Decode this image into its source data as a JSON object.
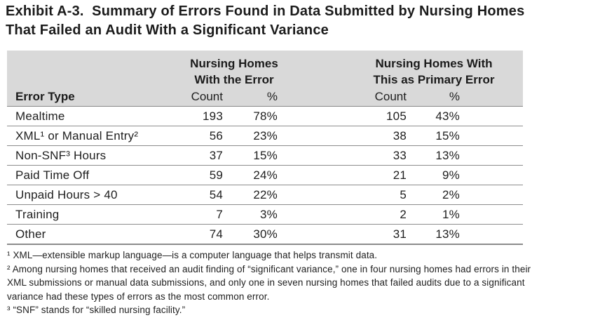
{
  "title": {
    "line1": "Exhibit A-3.  Summary of Errors Found in Data Submitted by Nursing Homes",
    "line2": "That Failed an Audit With a Significant Variance"
  },
  "table": {
    "group_headers": {
      "with_error": "Nursing Homes\nWith the Error",
      "primary_error": "Nursing Homes With\nThis as Primary Error"
    },
    "columns": {
      "error_type": "Error Type",
      "count": "Count",
      "percent": "%"
    },
    "rows": [
      {
        "label": "Mealtime",
        "count": "193",
        "pct": "78%",
        "p_count": "105",
        "p_pct": "43%"
      },
      {
        "label": "XML¹ or Manual Entry²",
        "count": "56",
        "pct": "23%",
        "p_count": "38",
        "p_pct": "15%"
      },
      {
        "label": "Non-SNF³ Hours",
        "count": "37",
        "pct": "15%",
        "p_count": "33",
        "p_pct": "13%"
      },
      {
        "label": "Paid Time Off",
        "count": "59",
        "pct": "24%",
        "p_count": "21",
        "p_pct": "9%"
      },
      {
        "label": "Unpaid Hours > 40",
        "count": "54",
        "pct": "22%",
        "p_count": "5",
        "p_pct": "2%"
      },
      {
        "label": "Training",
        "count": "7",
        "pct": "3%",
        "p_count": "2",
        "p_pct": "1%"
      },
      {
        "label": "Other",
        "count": "74",
        "pct": "30%",
        "p_count": "31",
        "p_pct": "13%"
      }
    ]
  },
  "footnotes": [
    "¹ XML—extensible markup language—is a computer language that helps transmit data.",
    "² Among nursing homes that received an audit finding of “significant variance,” one in four nursing homes had errors in their XML submissions or manual data submissions, and only one in seven nursing homes that failed audits due to a significant variance had these types of errors as the most common error.",
    "³ “SNF” stands for “skilled nursing facility.”"
  ],
  "colors": {
    "header_bg": "#d9d9d9",
    "text": "#1e1e1e",
    "divider": "#8c8c8c"
  }
}
